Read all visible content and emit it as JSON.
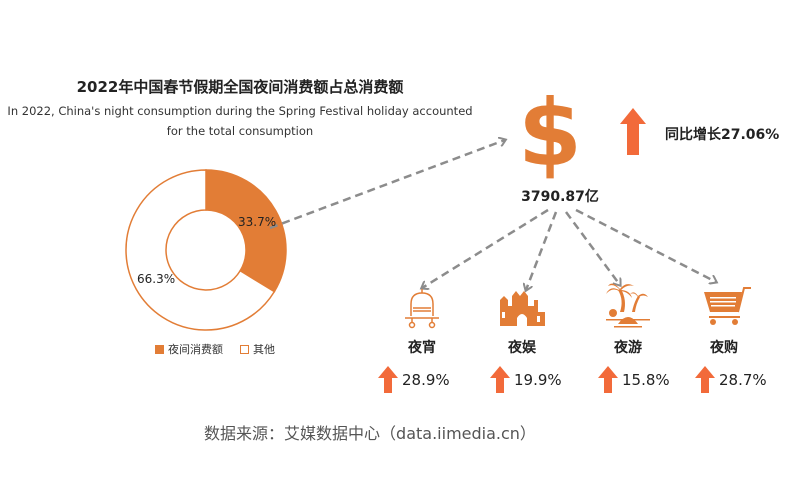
{
  "title": "2022年中国春节假期全国夜间消费额占总消费额",
  "subtitle_line1": "In 2022, China's night consumption during the Spring Festival holiday  accounted",
  "subtitle_line2": "for the total consumption",
  "colors": {
    "accent": "#E27D36",
    "arrow": "#F26A3A",
    "dash": "#8C8C8C"
  },
  "chart_data": {
    "type": "pie",
    "donut": true,
    "slices": [
      {
        "name": "夜间消费额",
        "value": 33.7,
        "label": "33.7%",
        "color": "#E27D36"
      },
      {
        "name": "其他",
        "value": 66.3,
        "label": "66.3%",
        "color": "#FFFFFF"
      }
    ],
    "legend_placement": "bottom"
  },
  "total": {
    "value": "3790.87亿",
    "yoy": "同比增长27.06%",
    "icon": "dollar-icon"
  },
  "categories": [
    {
      "name": "夜宵",
      "growth": "28.9%",
      "icon": "food-cloche-icon"
    },
    {
      "name": "夜娱",
      "growth": "19.9%",
      "icon": "castle-icon"
    },
    {
      "name": "夜游",
      "growth": "15.8%",
      "icon": "palm-tree-icon"
    },
    {
      "name": "夜购",
      "growth": "28.7%",
      "icon": "shopping-cart-icon"
    }
  ],
  "source": "数据来源：艾媒数据中心（data.iimedia.cn）"
}
